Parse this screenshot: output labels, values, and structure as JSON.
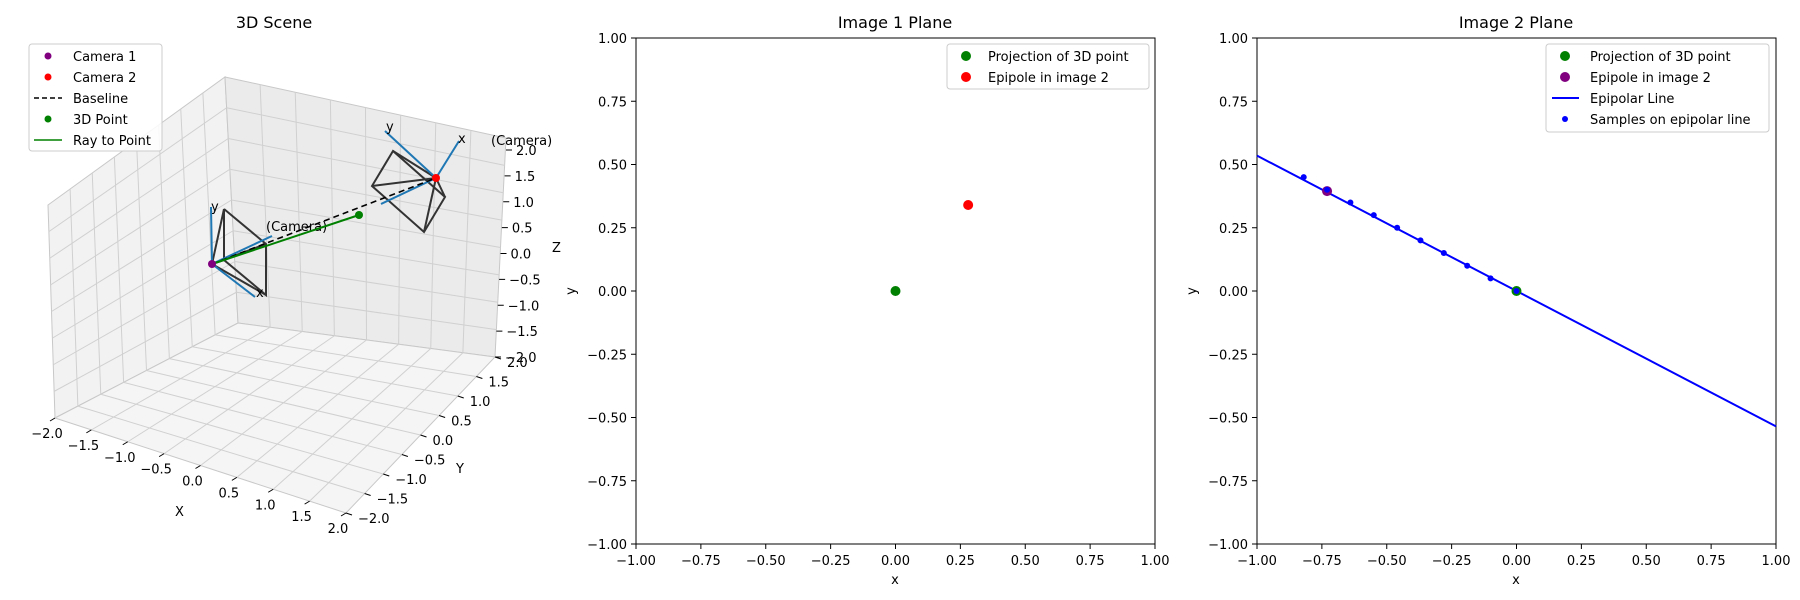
{
  "chart_data": [
    {
      "type": "scatter3d",
      "title": "3D Scene",
      "xlabel": "X",
      "ylabel": "Y",
      "zlabel": "Z",
      "xlim": [
        -2,
        2
      ],
      "ylim": [
        -2,
        2
      ],
      "zlim": [
        -2,
        2
      ],
      "x_ticks": [
        "−2.0",
        "−1.5",
        "−1.0",
        "−0.5",
        "0.0",
        "0.5",
        "1.0",
        "1.5",
        "2.0"
      ],
      "y_ticks": [
        "−2.0",
        "−1.5",
        "−1.0",
        "−0.5",
        "0.0",
        "0.5",
        "1.0",
        "1.5",
        "2.0"
      ],
      "z_ticks": [
        "−2.0",
        "−1.5",
        "−1.0",
        "−0.5",
        "0.0",
        "0.5",
        "1.0",
        "1.5",
        "2.0"
      ],
      "grid": true,
      "legend_position": "upper-left",
      "legend": [
        {
          "label": "Camera 1",
          "kind": "dot",
          "color": "#800080"
        },
        {
          "label": "Camera 2",
          "kind": "dot",
          "color": "#ff0000"
        },
        {
          "label": "Baseline",
          "kind": "dashed",
          "color": "#000000"
        },
        {
          "label": "3D Point",
          "kind": "dot",
          "color": "#008000"
        },
        {
          "label": "Ray to Point",
          "kind": "line",
          "color": "#008000"
        }
      ],
      "points": {
        "camera_1": [
          0,
          0,
          0
        ],
        "camera_2": [
          1.0,
          0.5,
          1.5
        ],
        "point_3d": [
          0.5,
          0.5,
          1.0
        ]
      },
      "annotations": {
        "camera_1_label": "(Camera)",
        "camera_2_label": "(Camera)",
        "axis_x": "x",
        "axis_y": "y"
      },
      "colors": {
        "camera_axes": "#1f77b4",
        "frustum": "#333333"
      }
    },
    {
      "type": "scatter",
      "title": "Image 1 Plane",
      "xlabel": "x",
      "ylabel": "y",
      "xlim": [
        -1,
        1
      ],
      "ylim": [
        -1,
        1
      ],
      "x_ticks": [
        "−1.00",
        "−0.75",
        "−0.50",
        "−0.25",
        "0.00",
        "0.25",
        "0.50",
        "0.75",
        "1.00"
      ],
      "y_ticks": [
        "−1.00",
        "−0.75",
        "−0.50",
        "−0.25",
        "0.00",
        "0.25",
        "0.50",
        "0.75",
        "1.00"
      ],
      "legend_position": "upper-right",
      "series": [
        {
          "name": "Projection of 3D point",
          "color": "#008000",
          "x": [
            0.0
          ],
          "y": [
            0.0
          ]
        },
        {
          "name": "Epipole in image 2",
          "color": "#ff0000",
          "x": [
            0.28
          ],
          "y": [
            0.34
          ]
        }
      ]
    },
    {
      "type": "line",
      "title": "Image 2 Plane",
      "xlabel": "x",
      "ylabel": "y",
      "xlim": [
        -1,
        1
      ],
      "ylim": [
        -1,
        1
      ],
      "x_ticks": [
        "−1.00",
        "−0.75",
        "−0.50",
        "−0.25",
        "0.00",
        "0.25",
        "0.50",
        "0.75",
        "1.00"
      ],
      "y_ticks": [
        "−1.00",
        "−0.75",
        "−0.50",
        "−0.25",
        "0.00",
        "0.25",
        "0.50",
        "0.75",
        "1.00"
      ],
      "legend_position": "upper-right",
      "epipolar_line": {
        "name": "Epipolar Line",
        "color": "#0000ff",
        "x": [
          -1.0,
          1.0
        ],
        "y": [
          0.535,
          -0.535
        ]
      },
      "samples": {
        "name": "Samples on epipolar line",
        "color": "#0000ff",
        "x": [
          -0.82,
          -0.73,
          -0.64,
          -0.55,
          -0.46,
          -0.37,
          -0.28,
          -0.19,
          -0.1,
          0.0
        ],
        "y": [
          0.45,
          0.4,
          0.35,
          0.3,
          0.25,
          0.2,
          0.15,
          0.1,
          0.05,
          0.0
        ]
      },
      "series": [
        {
          "name": "Projection of 3D point",
          "color": "#008000",
          "x": [
            0.0
          ],
          "y": [
            0.0
          ]
        },
        {
          "name": "Epipole in image 2",
          "color": "#800080",
          "x": [
            -0.73
          ],
          "y": [
            0.395
          ]
        }
      ]
    }
  ]
}
